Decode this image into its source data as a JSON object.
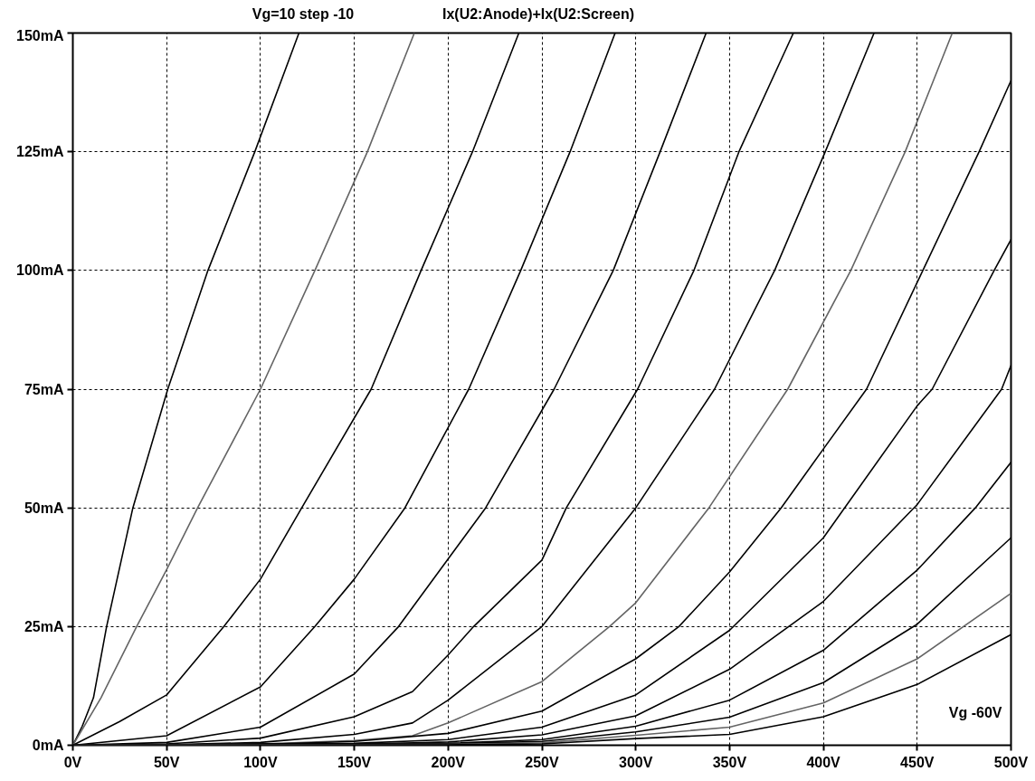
{
  "chart_data": {
    "type": "line",
    "title": "Ix(U2:Anode)+Ix(U2:Screen)",
    "annotations": [
      "Vg=10 step -10",
      "Vg -60V"
    ],
    "xlim": [
      0,
      500
    ],
    "ylim": [
      0,
      150
    ],
    "xticks": [
      {
        "value": 0,
        "label": "0V"
      },
      {
        "value": 50,
        "label": "50V"
      },
      {
        "value": 100,
        "label": "100V"
      },
      {
        "value": 150,
        "label": "150V"
      },
      {
        "value": 200,
        "label": "200V"
      },
      {
        "value": 250,
        "label": "250V"
      },
      {
        "value": 300,
        "label": "300V"
      },
      {
        "value": 350,
        "label": "350V"
      },
      {
        "value": 400,
        "label": "400V"
      },
      {
        "value": 450,
        "label": "450V"
      },
      {
        "value": 500,
        "label": "500V"
      }
    ],
    "yticks": [
      {
        "value": 0,
        "label": "0mA"
      },
      {
        "value": 25,
        "label": "25mA"
      },
      {
        "value": 50,
        "label": "50mA"
      },
      {
        "value": 75,
        "label": "75mA"
      },
      {
        "value": 100,
        "label": "100mA"
      },
      {
        "value": 125,
        "label": "125mA"
      },
      {
        "value": 150,
        "label": "150mA"
      }
    ],
    "grid": true,
    "marker": "none",
    "line_style": "solid",
    "series": [
      {
        "color": "#000000",
        "x": [
          0,
          5,
          11,
          18,
          32,
          50.6,
          72,
          97,
          120.5
        ],
        "values": [
          0,
          4,
          10,
          25,
          50,
          75,
          100,
          125,
          150
        ]
      },
      {
        "color": "#646464",
        "x": [
          0,
          15,
          34,
          50,
          66.5,
          100,
          129,
          157,
          182
        ],
        "values": [
          0,
          10,
          25,
          37,
          50,
          75,
          100,
          125,
          150
        ]
      },
      {
        "color": "#000000",
        "x": [
          0,
          25,
          50,
          80.5,
          100,
          122,
          159,
          185.6,
          213,
          237.7
        ],
        "values": [
          0,
          5,
          10.6,
          25,
          35,
          50,
          75,
          100,
          125,
          150
        ]
      },
      {
        "color": "#000000",
        "x": [
          0,
          50,
          100,
          129,
          150,
          177,
          211,
          238.7,
          265,
          289
        ],
        "values": [
          0,
          2,
          12.3,
          25,
          35,
          50,
          75,
          100,
          125,
          150
        ]
      },
      {
        "color": "#000000",
        "x": [
          0,
          50,
          100,
          150,
          173.6,
          220,
          256.5,
          288,
          313,
          337.5
        ],
        "values": [
          0,
          0.6,
          3.8,
          15,
          25,
          50,
          75,
          100,
          125,
          150
        ]
      },
      {
        "color": "#000000",
        "x": [
          0,
          50,
          100,
          150,
          181,
          200,
          213.6,
          250,
          263,
          301,
          331,
          355,
          384
        ],
        "values": [
          0,
          0.3,
          1.5,
          6,
          11.3,
          19,
          25,
          39,
          50,
          75,
          100,
          125,
          150
        ]
      },
      {
        "color": "#000000",
        "x": [
          0,
          50,
          100,
          150,
          181,
          200,
          250,
          300,
          342,
          374,
          401,
          427
        ],
        "values": [
          0,
          0.1,
          0.6,
          2.3,
          4.7,
          9.5,
          25,
          50,
          75,
          100,
          125,
          150
        ]
      },
      {
        "color": "#646464",
        "x": [
          0,
          50,
          100,
          150,
          181,
          200,
          250,
          286,
          300,
          339,
          381,
          414.6,
          443.6,
          468.7
        ],
        "values": [
          0,
          0,
          0.3,
          1,
          2,
          4.7,
          13.4,
          25,
          30,
          50,
          75,
          100,
          125,
          150
        ]
      },
      {
        "color": "#000000",
        "x": [
          0,
          100,
          150,
          200,
          250,
          300,
          323,
          350,
          377.5,
          400,
          423,
          453,
          483,
          500
        ],
        "values": [
          0,
          0.2,
          0.8,
          2.5,
          7.2,
          18.2,
          25,
          36.5,
          50,
          62.4,
          75,
          100,
          125,
          140
        ]
      },
      {
        "color": "#000000",
        "x": [
          0,
          150,
          200,
          250,
          300,
          350,
          400,
          450,
          458,
          491,
          500
        ],
        "values": [
          0,
          0.4,
          1.2,
          3.8,
          10.6,
          24.2,
          43.7,
          71.5,
          75,
          100,
          106.5
        ]
      },
      {
        "color": "#000000",
        "x": [
          0,
          150,
          200,
          250,
          300,
          350,
          400,
          450,
          495,
          500
        ],
        "values": [
          0,
          0.2,
          0.7,
          2.2,
          6.2,
          16,
          30.3,
          50.7,
          75,
          80
        ]
      },
      {
        "color": "#000000",
        "x": [
          0,
          200,
          250,
          300,
          350,
          400,
          450,
          481,
          500
        ],
        "values": [
          0,
          0.4,
          1.2,
          4,
          9.5,
          20,
          36.9,
          50,
          59.6
        ]
      },
      {
        "color": "#000000",
        "x": [
          0,
          200,
          250,
          300,
          350,
          400,
          450,
          500
        ],
        "values": [
          0,
          0.3,
          0.8,
          2.8,
          5.9,
          13.2,
          25.5,
          43.7
        ]
      },
      {
        "color": "#646464",
        "x": [
          0,
          200,
          250,
          300,
          350,
          400,
          450,
          500
        ],
        "values": [
          0,
          0.2,
          0.5,
          2.1,
          3.8,
          8.9,
          18.2,
          32
        ]
      },
      {
        "color": "#000000",
        "x": [
          0,
          200,
          250,
          300,
          350,
          400,
          450,
          500
        ],
        "values": [
          0,
          0.1,
          0.3,
          1.4,
          2.3,
          6,
          12.8,
          23.3
        ]
      }
    ]
  }
}
